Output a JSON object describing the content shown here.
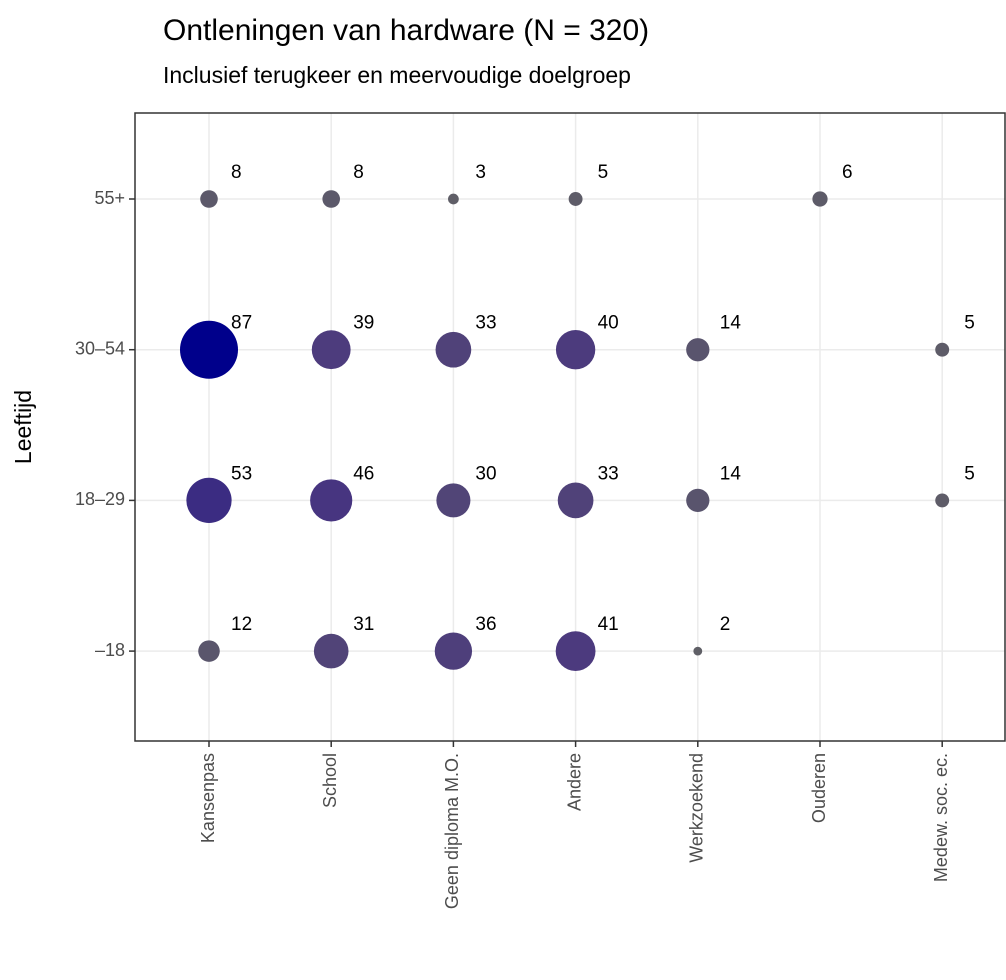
{
  "chart_data": {
    "type": "bubble",
    "title": "Ontleningen van hardware (N = 320)",
    "subtitle": "Inclusief terugkeer en meervoudige doelgroep",
    "y_label": "Leeftijd",
    "categories": [
      "Kansenpas",
      "School",
      "Geen diploma M.O.",
      "Andere",
      "Werkzoekend",
      "Ouderen",
      "Medew. soc. ec."
    ],
    "y_categories": [
      "55+",
      "30–54",
      "18–29",
      "–18"
    ],
    "values": [
      [
        8,
        8,
        3,
        5,
        null,
        6,
        null
      ],
      [
        87,
        39,
        33,
        40,
        14,
        null,
        5
      ],
      [
        53,
        46,
        30,
        33,
        14,
        null,
        5
      ],
      [
        12,
        31,
        36,
        41,
        2,
        null,
        null
      ]
    ],
    "color_scale": [
      "#5f5f66",
      "#4a3780",
      "#00008b"
    ],
    "grid": true
  }
}
